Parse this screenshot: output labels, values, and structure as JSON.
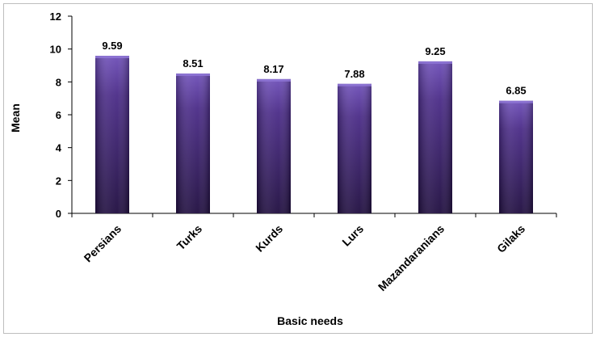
{
  "chart_data": {
    "type": "bar",
    "categories": [
      "Persians",
      "Turks",
      "Kurds",
      "Lurs",
      "Mazandaranians",
      "Gilaks"
    ],
    "values": [
      9.59,
      8.51,
      8.17,
      7.88,
      9.25,
      6.85
    ],
    "value_labels": [
      "9.59",
      "8.51",
      "8.17",
      "7.88",
      "9.25",
      "6.85"
    ],
    "title": "",
    "xlabel": "Basic needs",
    "ylabel": "Mean",
    "ylim": [
      0,
      12
    ],
    "yticks": [
      0,
      2,
      4,
      6,
      8,
      10,
      12
    ],
    "grid": false,
    "legend": "none",
    "colors": {
      "bar_top": "#6e4fb8",
      "bar_mid": "#4a2b87",
      "bar_bottom": "#1f0d3f",
      "axis": "#000000"
    }
  }
}
